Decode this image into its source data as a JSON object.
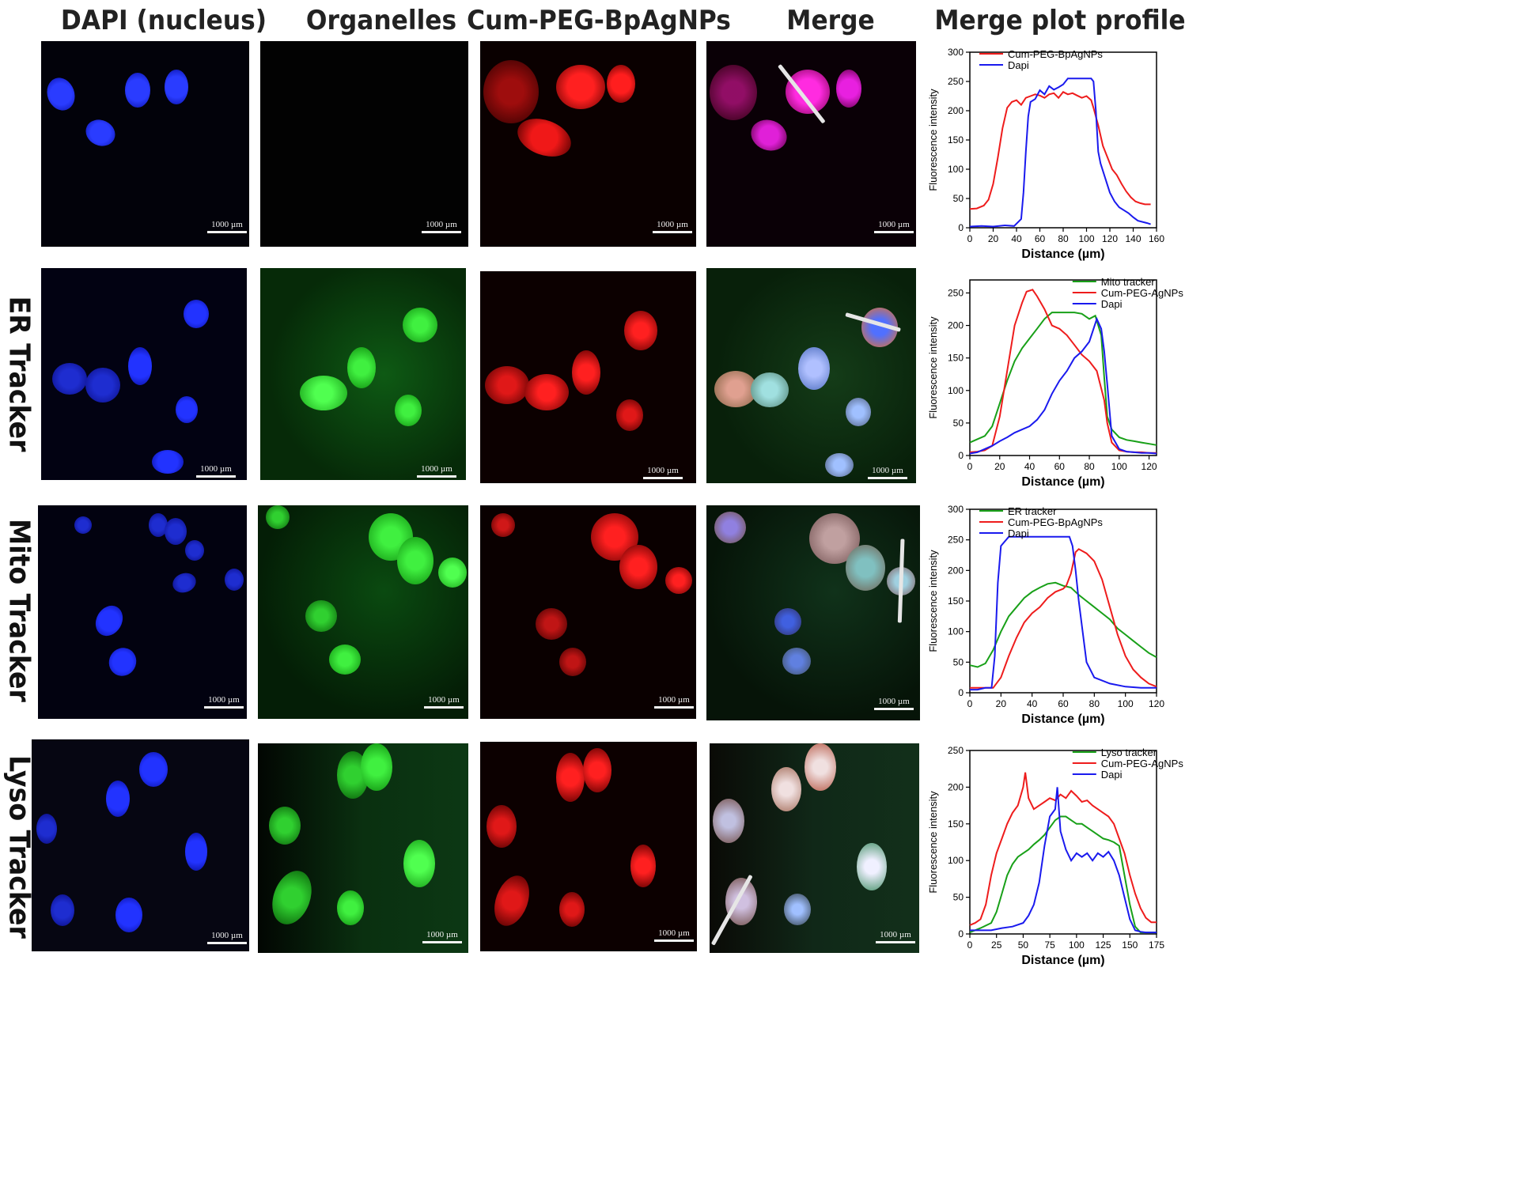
{
  "figure": {
    "column_headers": [
      "DAPI (nucleus)",
      "Organelles",
      "Cum-PEG-BpAgNPs",
      "Merge",
      "Merge plot profile"
    ],
    "row_labels": [
      "",
      "ER Tracker",
      "Mito Tracker",
      "Lyso Tracker"
    ],
    "scale_bar": "1000 µm",
    "colors": {
      "dapi": "#1a2bff",
      "organelle": "#21d02a",
      "nanoparticle": "#ff1a1a",
      "merge_nucleus": "#d820e8",
      "background": "#000000",
      "profile_line": "#e6e6e6"
    }
  },
  "chart_data": [
    {
      "type": "line",
      "xlabel": "Distance (µm)",
      "ylabel": "Fluorescence intensity",
      "xlim": [
        0,
        160
      ],
      "ylim": [
        0,
        300
      ],
      "xticks": [
        "0",
        "20",
        "40",
        "60",
        "80",
        "100",
        "120",
        "140",
        "160"
      ],
      "yticks": [
        "0",
        "50",
        "100",
        "150",
        "200",
        "250",
        "300"
      ],
      "legend": "top-left",
      "series": [
        {
          "name": "Cum-PEG-BpAgNPs",
          "color": "#ee1c1c",
          "x": [
            0,
            6,
            12,
            16,
            20,
            24,
            28,
            32,
            36,
            40,
            44,
            48,
            52,
            56,
            60,
            64,
            68,
            72,
            76,
            80,
            84,
            88,
            92,
            96,
            100,
            104,
            106,
            110,
            114,
            118,
            122,
            126,
            130,
            134,
            138,
            142,
            146,
            150,
            155
          ],
          "y": [
            32,
            33,
            38,
            48,
            75,
            120,
            170,
            205,
            215,
            218,
            210,
            222,
            225,
            228,
            226,
            222,
            228,
            230,
            222,
            232,
            228,
            230,
            226,
            222,
            225,
            218,
            205,
            175,
            140,
            120,
            100,
            90,
            75,
            62,
            52,
            45,
            42,
            40,
            40
          ]
        },
        {
          "name": "Dapi",
          "color": "#1a1aee",
          "x": [
            0,
            10,
            20,
            30,
            38,
            44,
            46,
            48,
            50,
            52,
            56,
            60,
            64,
            68,
            72,
            76,
            80,
            84,
            88,
            92,
            96,
            100,
            104,
            106,
            108,
            110,
            112,
            116,
            120,
            124,
            128,
            132,
            136,
            140,
            144,
            148,
            152,
            155
          ],
          "y": [
            2,
            3,
            2,
            4,
            3,
            15,
            60,
            130,
            190,
            215,
            220,
            235,
            228,
            242,
            236,
            240,
            245,
            255,
            255,
            255,
            255,
            255,
            255,
            250,
            200,
            130,
            110,
            85,
            60,
            45,
            35,
            30,
            25,
            18,
            12,
            10,
            8,
            6
          ]
        }
      ]
    },
    {
      "type": "line",
      "xlabel": "Distance (µm)",
      "ylabel": "Fluorescence intensity",
      "xlim": [
        0,
        125
      ],
      "ylim": [
        0,
        270
      ],
      "xticks": [
        "0",
        "20",
        "40",
        "60",
        "80",
        "100",
        "120"
      ],
      "yticks": [
        "0",
        "50",
        "100",
        "150",
        "200",
        "250"
      ],
      "legend": "top-right",
      "series": [
        {
          "name": "Mito tracker",
          "color": "#18a018",
          "x": [
            0,
            5,
            10,
            15,
            20,
            25,
            30,
            35,
            40,
            45,
            50,
            55,
            60,
            65,
            70,
            75,
            80,
            84,
            88,
            90,
            92,
            95,
            100,
            105,
            110,
            115,
            120,
            125
          ],
          "y": [
            20,
            25,
            30,
            45,
            80,
            115,
            145,
            165,
            180,
            195,
            210,
            220,
            220,
            220,
            220,
            218,
            210,
            215,
            185,
            120,
            60,
            40,
            28,
            24,
            22,
            20,
            18,
            16
          ]
        },
        {
          "name": "Cum-PEG-AgNPs",
          "color": "#ee1c1c",
          "x": [
            0,
            5,
            10,
            15,
            20,
            25,
            30,
            35,
            38,
            42,
            45,
            50,
            55,
            60,
            65,
            70,
            75,
            80,
            85,
            90,
            92,
            95,
            100,
            105,
            110,
            115,
            120,
            125
          ],
          "y": [
            5,
            6,
            8,
            15,
            60,
            130,
            200,
            235,
            252,
            255,
            245,
            225,
            200,
            195,
            185,
            170,
            155,
            145,
            130,
            85,
            50,
            20,
            8,
            6,
            5,
            5,
            4,
            4
          ]
        },
        {
          "name": "Dapi",
          "color": "#1a1aee",
          "x": [
            0,
            5,
            10,
            15,
            20,
            25,
            30,
            35,
            40,
            45,
            50,
            55,
            60,
            65,
            70,
            75,
            80,
            85,
            88,
            90,
            92,
            95,
            100,
            105,
            110,
            115,
            120,
            125
          ],
          "y": [
            3,
            5,
            10,
            15,
            22,
            28,
            35,
            40,
            45,
            55,
            70,
            95,
            115,
            130,
            150,
            160,
            175,
            210,
            195,
            160,
            110,
            30,
            10,
            6,
            5,
            4,
            4,
            3
          ]
        }
      ]
    },
    {
      "type": "line",
      "xlabel": "Distance (µm)",
      "ylabel": "Fluorescence intensity",
      "xlim": [
        0,
        120
      ],
      "ylim": [
        0,
        300
      ],
      "xticks": [
        "0",
        "20",
        "40",
        "60",
        "80",
        "100",
        "120"
      ],
      "yticks": [
        "0",
        "50",
        "100",
        "150",
        "200",
        "250",
        "300"
      ],
      "legend": "top-left",
      "series": [
        {
          "name": "ER tracker",
          "color": "#18a018",
          "x": [
            0,
            5,
            10,
            15,
            20,
            25,
            30,
            35,
            40,
            45,
            50,
            55,
            60,
            65,
            70,
            75,
            80,
            85,
            90,
            95,
            100,
            105,
            110,
            115,
            120
          ],
          "y": [
            45,
            42,
            48,
            70,
            100,
            125,
            140,
            155,
            165,
            172,
            178,
            180,
            175,
            172,
            160,
            150,
            140,
            130,
            120,
            105,
            95,
            85,
            75,
            65,
            58
          ]
        },
        {
          "name": "Cum-PEG-BpAgNPs",
          "color": "#ee1c1c",
          "x": [
            0,
            5,
            10,
            15,
            20,
            25,
            30,
            35,
            40,
            45,
            50,
            55,
            60,
            62,
            65,
            68,
            70,
            75,
            80,
            85,
            90,
            95,
            100,
            105,
            110,
            115,
            120
          ],
          "y": [
            8,
            8,
            8,
            8,
            25,
            60,
            90,
            115,
            130,
            140,
            155,
            165,
            170,
            175,
            195,
            230,
            235,
            228,
            215,
            185,
            140,
            95,
            60,
            38,
            25,
            15,
            10
          ]
        },
        {
          "name": "Dapi",
          "color": "#1a1aee",
          "x": [
            0,
            5,
            10,
            14,
            16,
            18,
            20,
            25,
            30,
            35,
            40,
            45,
            50,
            55,
            60,
            64,
            66,
            68,
            70,
            72,
            75,
            80,
            90,
            100,
            110,
            120
          ],
          "y": [
            5,
            5,
            8,
            8,
            60,
            180,
            240,
            255,
            255,
            255,
            255,
            255,
            255,
            255,
            255,
            255,
            240,
            200,
            150,
            110,
            50,
            25,
            15,
            10,
            8,
            8
          ]
        }
      ]
    },
    {
      "type": "line",
      "xlabel": "Distance (µm)",
      "ylabel": "Fluorescence intensity",
      "xlim": [
        0,
        175
      ],
      "ylim": [
        0,
        250
      ],
      "xticks": [
        "0",
        "25",
        "50",
        "75",
        "100",
        "125",
        "150",
        "175"
      ],
      "yticks": [
        "0",
        "50",
        "100",
        "150",
        "200",
        "250"
      ],
      "legend": "top-right",
      "series": [
        {
          "name": "Lyso tracker",
          "color": "#18a018",
          "x": [
            0,
            10,
            20,
            25,
            30,
            35,
            40,
            45,
            50,
            55,
            60,
            65,
            70,
            75,
            80,
            85,
            90,
            95,
            100,
            105,
            110,
            115,
            120,
            125,
            130,
            135,
            140,
            145,
            150,
            155,
            160,
            165,
            170,
            175
          ],
          "y": [
            2,
            8,
            15,
            30,
            55,
            80,
            95,
            105,
            110,
            115,
            122,
            128,
            135,
            145,
            155,
            160,
            160,
            155,
            150,
            150,
            145,
            140,
            135,
            130,
            128,
            125,
            120,
            80,
            40,
            10,
            2,
            2,
            2,
            2
          ]
        },
        {
          "name": "Cum-PEG-AgNPs",
          "color": "#ee1c1c",
          "x": [
            0,
            5,
            10,
            15,
            20,
            25,
            30,
            35,
            40,
            45,
            50,
            52,
            55,
            60,
            65,
            70,
            75,
            80,
            85,
            90,
            95,
            100,
            105,
            110,
            115,
            120,
            125,
            130,
            135,
            140,
            145,
            150,
            155,
            160,
            165,
            170,
            175
          ],
          "y": [
            12,
            15,
            20,
            40,
            80,
            110,
            130,
            150,
            165,
            175,
            200,
            220,
            185,
            170,
            175,
            180,
            185,
            182,
            190,
            185,
            195,
            188,
            180,
            182,
            175,
            170,
            165,
            160,
            150,
            130,
            110,
            80,
            55,
            35,
            22,
            16,
            16
          ]
        },
        {
          "name": "Dapi",
          "color": "#1a1aee",
          "x": [
            0,
            10,
            20,
            30,
            40,
            50,
            55,
            60,
            65,
            70,
            75,
            80,
            82,
            85,
            90,
            95,
            100,
            105,
            110,
            115,
            120,
            125,
            130,
            135,
            140,
            145,
            150,
            155,
            160,
            165,
            170,
            175
          ],
          "y": [
            5,
            5,
            5,
            8,
            10,
            15,
            25,
            40,
            70,
            120,
            160,
            170,
            200,
            140,
            115,
            100,
            110,
            105,
            110,
            100,
            110,
            105,
            112,
            100,
            80,
            50,
            20,
            5,
            3,
            2,
            2,
            2
          ]
        }
      ]
    }
  ]
}
